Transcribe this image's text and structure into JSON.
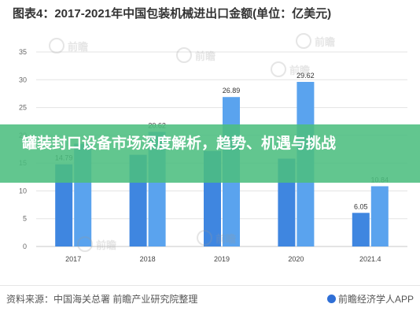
{
  "chart_data": {
    "type": "bar",
    "title": "图表4：2017-2021年中国包装机械进出口金额(单位：亿美元)",
    "categories": [
      "2017",
      "2018",
      "2019",
      "2020",
      "2021.4"
    ],
    "series": [
      {
        "values": [
          14.79,
          16.5,
          17.2,
          15.8,
          6.05
        ],
        "color": "#3f86e0"
      },
      {
        "values": [
          18.5,
          20.62,
          26.89,
          29.62,
          10.84
        ],
        "color": "#5aa3ee"
      }
    ],
    "data_labels": [
      [
        "14.79",
        "",
        "",
        "",
        "6.05"
      ],
      [
        "",
        "20.62",
        "26.89",
        "29.62",
        "10.84"
      ]
    ],
    "y_ticks": [
      0,
      5,
      10,
      15,
      20,
      25,
      30,
      35
    ],
    "ylim": [
      0,
      35
    ],
    "grid": true
  },
  "banner": {
    "text": "罐装封口设备市场深度解析，趋势、机遇与挑战"
  },
  "footer": {
    "source": "资料来源：中国海关总署 前瞻产业研究院整理",
    "brand": "前瞻经济学人APP",
    "brand_icon": "qianzhan-logo-icon"
  },
  "watermarks": [
    "前瞻",
    "前瞻",
    "前瞻",
    "前瞻",
    "前瞻",
    "前瞻"
  ]
}
